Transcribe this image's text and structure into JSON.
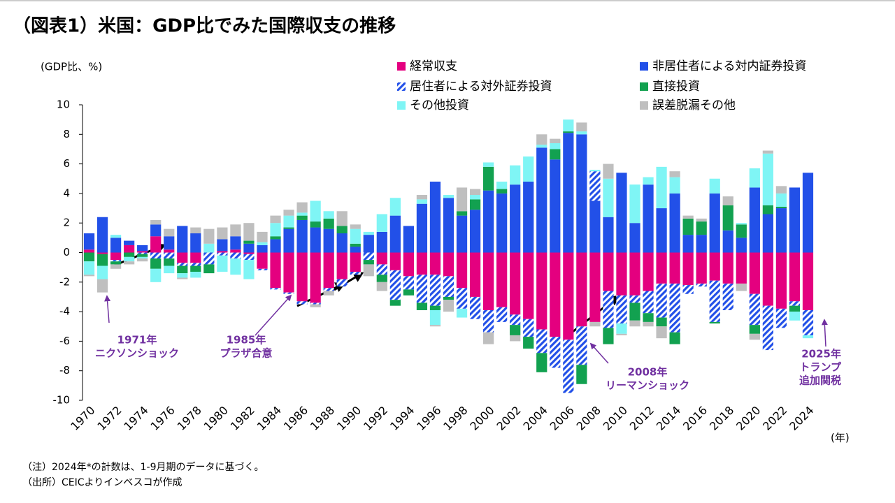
{
  "chart_data": {
    "type": "stacked-bar",
    "title": "（図表1）米国：GDP比でみた国際収支の推移",
    "y_label": "(GDP比、%)",
    "x_label": "(年)",
    "notes": [
      "（注）2024年*の計数は、1-9月期のデータに基づく。",
      "（出所）CEICよりインベスコが作成"
    ],
    "categories": [
      "1970",
      null,
      "1972",
      null,
      "1974",
      null,
      "1976",
      null,
      "1978",
      null,
      "1980",
      null,
      "1982",
      null,
      "1984",
      null,
      "1986",
      null,
      "1988",
      null,
      "1990",
      null,
      "1992",
      null,
      "1994",
      null,
      "1996",
      null,
      "1998",
      null,
      "2000",
      null,
      "2002",
      null,
      "2004",
      null,
      "2006",
      null,
      "2008",
      null,
      "2010",
      null,
      "2012",
      null,
      "2014",
      null,
      "2016",
      null,
      "2018",
      null,
      "2020",
      null,
      "2022",
      null,
      "2024"
    ],
    "ylim": [
      -10,
      10
    ],
    "yticks": [
      -10,
      -8,
      -6,
      -4,
      -2,
      0,
      2,
      4,
      6,
      8,
      10
    ],
    "grid": false,
    "series": [
      {
        "name": "経常収支",
        "color": "#e4007f",
        "values": [
          0.2,
          -0.1,
          -0.5,
          0.5,
          0.1,
          1.1,
          0.2,
          -0.7,
          -0.7,
          0.0,
          0.1,
          0.2,
          -0.1,
          -1.1,
          -2.4,
          -2.7,
          -3.3,
          -3.4,
          -2.4,
          -1.8,
          -1.3,
          0.0,
          -0.8,
          -1.2,
          -1.6,
          -1.5,
          -1.5,
          -1.6,
          -2.4,
          -3.0,
          -3.9,
          -3.7,
          -4.2,
          -4.5,
          -5.2,
          -5.7,
          -5.9,
          -5.0,
          -4.7,
          -2.6,
          -2.9,
          -2.9,
          -2.6,
          -2.1,
          -2.1,
          -2.2,
          -2.1,
          -1.9,
          -2.1,
          -2.1,
          -2.8,
          -3.6,
          -3.8,
          -3.3,
          -3.9
        ]
      },
      {
        "name": "非居住者による対内証券投資",
        "color": "#2250e8",
        "values": [
          1.1,
          2.4,
          1.0,
          0.3,
          0.4,
          0.8,
          0.9,
          1.8,
          1.3,
          0.0,
          0.8,
          0.9,
          0.6,
          0.5,
          0.9,
          1.6,
          2.2,
          1.7,
          1.6,
          1.3,
          0.4,
          1.2,
          1.4,
          2.5,
          1.8,
          3.3,
          4.8,
          3.7,
          2.5,
          2.9,
          4.2,
          4.0,
          4.6,
          4.8,
          7.1,
          6.3,
          8.1,
          8.0,
          3.5,
          2.4,
          5.4,
          2.0,
          4.6,
          3.0,
          4.0,
          1.2,
          1.2,
          4.0,
          1.5,
          1.0,
          4.4,
          2.6,
          3.0,
          4.4,
          5.4
        ]
      },
      {
        "name": "居住者による対外証券投資",
        "color": "#2250e8",
        "hatch": true,
        "values": [
          0,
          0,
          -0.1,
          0,
          -0.1,
          -0.4,
          -0.4,
          -0.2,
          -0.2,
          -0.8,
          -0.2,
          -0.4,
          -0.4,
          -0.1,
          -0.1,
          -0.1,
          -0.2,
          -0.1,
          -0.2,
          -0.5,
          -0.2,
          -0.5,
          -0.7,
          -2.0,
          -0.9,
          -1.9,
          -2.1,
          -1.4,
          -1.4,
          -1.5,
          -1.5,
          -1.0,
          -0.7,
          -1.2,
          -1.6,
          -2.1,
          -3.6,
          -2.6,
          2.0,
          -2.5,
          -1.9,
          -0.5,
          -1.5,
          -2.3,
          -3.3,
          -0.6,
          -0.2,
          -2.8,
          -1.8,
          0,
          -2.1,
          -3.0,
          -1.3,
          -0.3,
          -1.7
        ]
      },
      {
        "name": "直接投資",
        "color": "#12a150",
        "values": [
          -0.6,
          -0.8,
          -0.2,
          -0.3,
          -0.2,
          -0.7,
          -0.5,
          -0.5,
          -0.4,
          -0.6,
          0,
          0,
          0.2,
          0,
          0.2,
          0.1,
          0.3,
          0.4,
          0.7,
          0.5,
          0.2,
          -0.3,
          -0.5,
          -0.4,
          -0.4,
          -0.5,
          -0.3,
          -0.2,
          0.3,
          0.7,
          1.6,
          0.3,
          -0.7,
          -0.8,
          -1.3,
          0.7,
          0.1,
          -1.3,
          0,
          -1.1,
          0,
          -1.2,
          -0.6,
          -0.6,
          -0.8,
          1.1,
          0.9,
          -0.1,
          1.7,
          0.9,
          -0.6,
          0.6,
          0.1,
          -0.4,
          0
        ]
      },
      {
        "name": "その他投資",
        "color": "#7ff5f5",
        "values": [
          -0.9,
          -0.9,
          0.2,
          -0.3,
          -0.1,
          -0.9,
          -0.5,
          -0.3,
          -0.4,
          0.6,
          -1.1,
          -1.1,
          -1.3,
          0.2,
          0.9,
          0.8,
          0.2,
          1.4,
          0.5,
          0,
          1.0,
          0.2,
          1.2,
          1.2,
          0,
          0.3,
          -1.0,
          0.2,
          -0.6,
          0.3,
          0.3,
          0.5,
          1.3,
          1.7,
          0.2,
          0.4,
          0.8,
          0.2,
          0.1,
          2.6,
          -0.7,
          2.6,
          0.5,
          2.8,
          1.1,
          0,
          0,
          1.0,
          0,
          0.1,
          1.3,
          3.5,
          0.9,
          -0.6,
          -0.2
        ]
      },
      {
        "name": "誤差脱漏その他",
        "color": "#bfbfbf",
        "values": [
          -0.1,
          -0.9,
          -0.3,
          -0.2,
          -0.2,
          0.3,
          0.5,
          -0.1,
          0.4,
          1.0,
          0.8,
          0.8,
          1.2,
          0.7,
          0.5,
          0.4,
          0.7,
          -0.2,
          -0.3,
          1.0,
          0.3,
          -0.8,
          -0.6,
          0,
          0,
          0.3,
          -0.1,
          -0.8,
          1.6,
          0.4,
          -0.8,
          0,
          -0.4,
          0,
          0.7,
          0.3,
          0,
          0.6,
          -0.3,
          1.0,
          -0.1,
          -0.4,
          -0.3,
          -0.8,
          0.4,
          0.2,
          0.2,
          0,
          0.6,
          -0.5,
          -0.4,
          0.2,
          0.5,
          0,
          0
        ]
      }
    ],
    "annotations": [
      {
        "lines": [
          "1971年",
          "ニクソンショック"
        ]
      },
      {
        "lines": [
          "1985年",
          "プラザ合意"
        ]
      },
      {
        "lines": [
          "2008年",
          "リーマンショック"
        ]
      },
      {
        "lines": [
          "2025年",
          "トランプ",
          "追加関税"
        ]
      }
    ]
  }
}
